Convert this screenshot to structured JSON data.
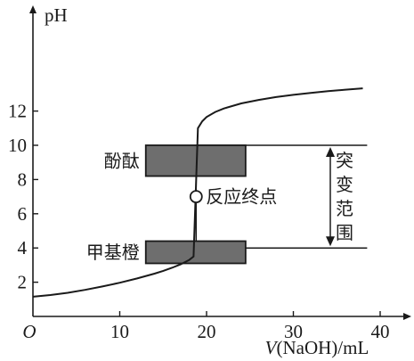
{
  "chart_data": {
    "type": "line",
    "xlabel_var": "V",
    "xlabel_rest": "(NaOH)/mL",
    "ylabel": "pH",
    "origin_label": "O",
    "xlim": [
      0,
      42
    ],
    "ylim": [
      0,
      14
    ],
    "x_ticks": [
      10,
      20,
      30,
      40
    ],
    "y_ticks": [
      2,
      4,
      6,
      8,
      10,
      12
    ],
    "series": [
      {
        "x": [
          0,
          2,
          4,
          6,
          8,
          10,
          12,
          14,
          15,
          16,
          17,
          18,
          18.5,
          19,
          19.5,
          20,
          21,
          22,
          24,
          26,
          28,
          30,
          32,
          34,
          36,
          38
        ],
        "y": [
          1.15,
          1.25,
          1.38,
          1.55,
          1.75,
          1.97,
          2.22,
          2.5,
          2.66,
          2.84,
          3.04,
          3.3,
          3.5,
          11.0,
          11.4,
          11.65,
          11.95,
          12.15,
          12.45,
          12.65,
          12.82,
          12.95,
          13.06,
          13.16,
          13.25,
          13.33
        ]
      }
    ],
    "equivalence_point": {
      "x": 18.8,
      "y": 7,
      "label": "反应终点"
    },
    "indicators": [
      {
        "name": "酚酞",
        "x_range": [
          13,
          24.5
        ],
        "y_range": [
          8.2,
          10
        ]
      },
      {
        "name": "甲基橙",
        "x_range": [
          13,
          24.5
        ],
        "y_range": [
          3.1,
          4.4
        ]
      }
    ],
    "jump_range": {
      "label_chars": [
        "突",
        "变",
        "范",
        "围"
      ],
      "y_range": [
        4,
        10
      ]
    },
    "guide_lines": [
      {
        "y": 10,
        "x_range": [
          18.8,
          38.5
        ]
      },
      {
        "y": 4,
        "x_range": [
          18.8,
          38.5
        ]
      }
    ]
  }
}
